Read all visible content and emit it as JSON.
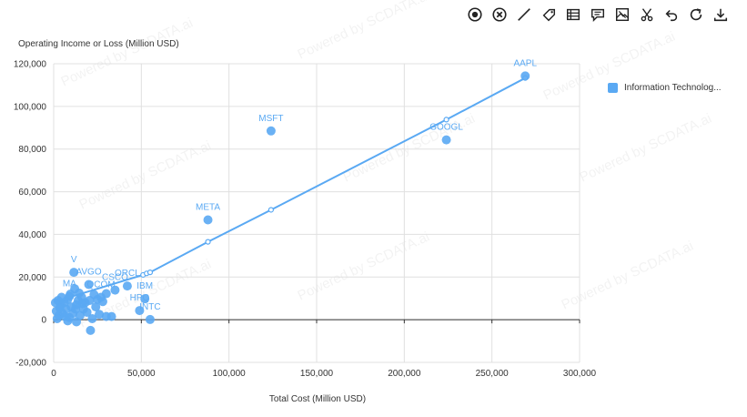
{
  "toolbar": {
    "tools": [
      "target-icon",
      "clear-icon",
      "line-icon",
      "tag-icon",
      "table-icon",
      "comment-icon",
      "image-comment-icon",
      "scissors-icon",
      "undo-icon",
      "refresh-icon",
      "download-icon"
    ]
  },
  "legend": {
    "label": "Information Technolog...",
    "color": "#5aa9f3"
  },
  "watermark": "Powered by SCDATA.ai",
  "chart_data": {
    "type": "scatter",
    "title": "",
    "xlabel": "Total Cost (Million USD)",
    "ylabel": "Operating Income or Loss (Million USD)",
    "xlim": [
      0,
      300000
    ],
    "ylim": [
      -20000,
      120000
    ],
    "x_ticks": [
      0,
      50000,
      100000,
      150000,
      200000,
      250000,
      300000
    ],
    "y_ticks": [
      -20000,
      0,
      20000,
      40000,
      60000,
      80000,
      100000,
      120000
    ],
    "x_tick_labels": [
      "0",
      "50,000",
      "100,000",
      "150,000",
      "200,000",
      "250,000",
      "300,000"
    ],
    "y_tick_labels": [
      "-20,000",
      "0",
      "20,000",
      "40,000",
      "60,000",
      "80,000",
      "100,000",
      "120,000"
    ],
    "grid": true,
    "legend_position": "right",
    "series": [
      {
        "name": "Information Technolog...",
        "color": "#5aa9f3",
        "points": [
          {
            "x": 269000,
            "y": 114300,
            "label": "AAPL"
          },
          {
            "x": 124000,
            "y": 88500,
            "label": "MSFT"
          },
          {
            "x": 224000,
            "y": 84300,
            "label": "GOOGL"
          },
          {
            "x": 88000,
            "y": 46800,
            "label": "META"
          },
          {
            "x": 11500,
            "y": 22200,
            "label": "V"
          },
          {
            "x": 20000,
            "y": 16500,
            "label": "AVGO"
          },
          {
            "x": 42000,
            "y": 15800,
            "label": "ORCL"
          },
          {
            "x": 35000,
            "y": 13900,
            "label": "CSCO"
          },
          {
            "x": 52000,
            "y": 9800,
            "label": "IBM"
          },
          {
            "x": 49000,
            "y": 4300,
            "label": "HPQ"
          },
          {
            "x": 55000,
            "y": 100,
            "label": "INTC"
          },
          {
            "x": 9000,
            "y": 11000,
            "label": "MA"
          },
          {
            "x": 27000,
            "y": 10500,
            "label": "QCOM"
          },
          {
            "x": 30000,
            "y": 12200,
            "label": ""
          },
          {
            "x": 25000,
            "y": 9500,
            "label": ""
          },
          {
            "x": 23000,
            "y": 11800,
            "label": ""
          },
          {
            "x": 18000,
            "y": 8000,
            "label": ""
          },
          {
            "x": 16000,
            "y": 10500,
            "label": ""
          },
          {
            "x": 14000,
            "y": 9000,
            "label": ""
          },
          {
            "x": 12000,
            "y": 14500,
            "label": ""
          },
          {
            "x": 13000,
            "y": 7000,
            "label": ""
          },
          {
            "x": 10000,
            "y": 6000,
            "label": ""
          },
          {
            "x": 8000,
            "y": 9500,
            "label": ""
          },
          {
            "x": 7000,
            "y": 5000,
            "label": ""
          },
          {
            "x": 6000,
            "y": 8000,
            "label": ""
          },
          {
            "x": 5000,
            "y": 3000,
            "label": ""
          },
          {
            "x": 4000,
            "y": 7000,
            "label": ""
          },
          {
            "x": 3000,
            "y": 2000,
            "label": ""
          },
          {
            "x": 2500,
            "y": 9000,
            "label": ""
          },
          {
            "x": 2000,
            "y": 500,
            "label": ""
          },
          {
            "x": 1500,
            "y": 4000,
            "label": ""
          },
          {
            "x": 1000,
            "y": 8000,
            "label": ""
          },
          {
            "x": 9000,
            "y": 1000,
            "label": ""
          },
          {
            "x": 11000,
            "y": 3000,
            "label": ""
          },
          {
            "x": 13000,
            "y": -1000,
            "label": ""
          },
          {
            "x": 15000,
            "y": 2000,
            "label": ""
          },
          {
            "x": 17000,
            "y": 5000,
            "label": ""
          },
          {
            "x": 19000,
            "y": 3500,
            "label": ""
          },
          {
            "x": 21000,
            "y": -5000,
            "label": ""
          },
          {
            "x": 22000,
            "y": 500,
            "label": ""
          },
          {
            "x": 24000,
            "y": 6000,
            "label": ""
          },
          {
            "x": 26000,
            "y": 2500,
            "label": ""
          },
          {
            "x": 28000,
            "y": 8500,
            "label": ""
          },
          {
            "x": 30000,
            "y": 1500,
            "label": ""
          },
          {
            "x": 33000,
            "y": 1500,
            "label": ""
          },
          {
            "x": 8000,
            "y": -500,
            "label": ""
          },
          {
            "x": 6500,
            "y": 1500,
            "label": ""
          },
          {
            "x": 12500,
            "y": 5000,
            "label": ""
          },
          {
            "x": 16500,
            "y": 7500,
            "label": ""
          },
          {
            "x": 20500,
            "y": 9000,
            "label": ""
          },
          {
            "x": 4500,
            "y": 10500,
            "label": ""
          },
          {
            "x": 3500,
            "y": 5500,
            "label": ""
          },
          {
            "x": 9500,
            "y": 12000,
            "label": ""
          },
          {
            "x": 14500,
            "y": 12500,
            "label": ""
          }
        ]
      }
    ],
    "trendline": {
      "color": "#5aa9f3",
      "points": [
        {
          "x": 0,
          "y": 8300
        },
        {
          "x": 51000,
          "y": 21000
        },
        {
          "x": 53000,
          "y": 21700
        },
        {
          "x": 55000,
          "y": 22200
        },
        {
          "x": 88000,
          "y": 36500
        },
        {
          "x": 124000,
          "y": 51500
        },
        {
          "x": 224000,
          "y": 93800
        },
        {
          "x": 269000,
          "y": 113300
        }
      ]
    }
  }
}
